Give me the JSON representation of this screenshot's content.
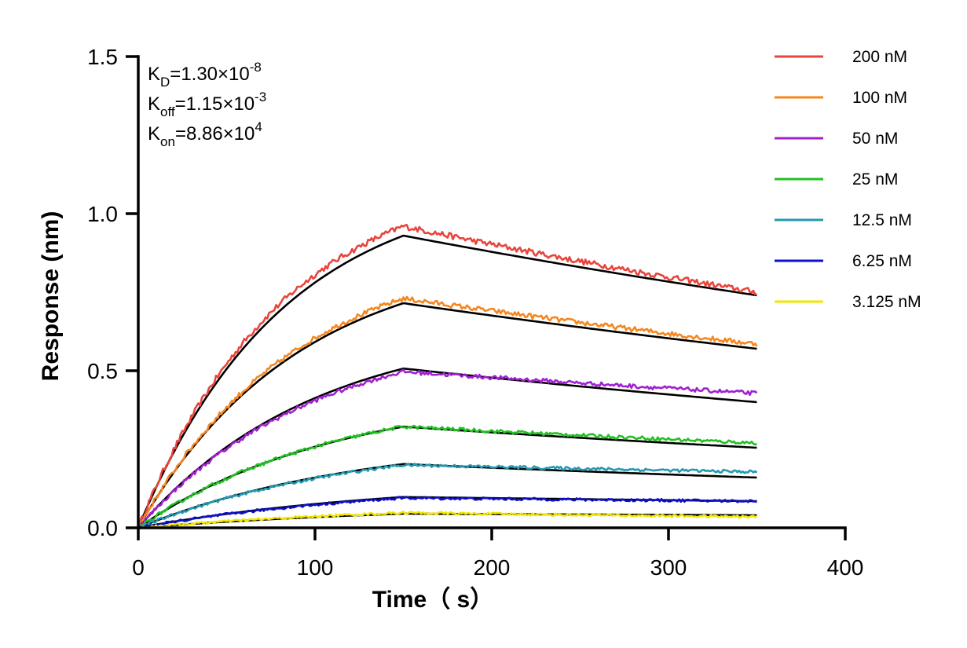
{
  "chart_data": {
    "type": "line",
    "title": "",
    "xlabel": "Time（ s）",
    "ylabel": "Response (nm)",
    "xlim": [
      0,
      400
    ],
    "ylim": [
      0,
      1.5
    ],
    "x_ticks": [
      "0",
      "100",
      "200",
      "300",
      "400"
    ],
    "y_ticks": [
      "0.0",
      "0.5",
      "1.0",
      "1.5"
    ],
    "legend_position": "top-right",
    "grid": false,
    "association_end": 150,
    "time_end": 350,
    "annotations": [
      {
        "base": "K",
        "sub": "D",
        "value": "=1.30×10",
        "exp": "-8"
      },
      {
        "base": "K",
        "sub": "off",
        "value": "=1.15×10",
        "exp": "-3"
      },
      {
        "base": "K",
        "sub": "on",
        "value": "=8.86×10",
        "exp": "4"
      }
    ],
    "series": [
      {
        "name": "200 nM",
        "color": "#e8453c",
        "peak": 0.96,
        "end": 0.75,
        "fit_peak": 0.93,
        "fit_end": 0.74
      },
      {
        "name": "100 nM",
        "color": "#f5871f",
        "peak": 0.73,
        "end": 0.585,
        "fit_peak": 0.715,
        "fit_end": 0.57
      },
      {
        "name": "50 nM",
        "color": "#a020d0",
        "peak": 0.497,
        "end": 0.428,
        "fit_peak": 0.507,
        "fit_end": 0.4
      },
      {
        "name": "25 nM",
        "color": "#22c022",
        "peak": 0.322,
        "end": 0.27,
        "fit_peak": 0.322,
        "fit_end": 0.255
      },
      {
        "name": "12.5 nM",
        "color": "#2499b0",
        "peak": 0.2,
        "end": 0.178,
        "fit_peak": 0.203,
        "fit_end": 0.16
      },
      {
        "name": "6.25 nM",
        "color": "#1010c8",
        "peak": 0.095,
        "end": 0.085,
        "fit_peak": 0.098,
        "fit_end": 0.085
      },
      {
        "name": "3.125 nM",
        "color": "#f2e600",
        "peak": 0.048,
        "end": 0.035,
        "fit_peak": 0.045,
        "fit_end": 0.04
      }
    ]
  }
}
